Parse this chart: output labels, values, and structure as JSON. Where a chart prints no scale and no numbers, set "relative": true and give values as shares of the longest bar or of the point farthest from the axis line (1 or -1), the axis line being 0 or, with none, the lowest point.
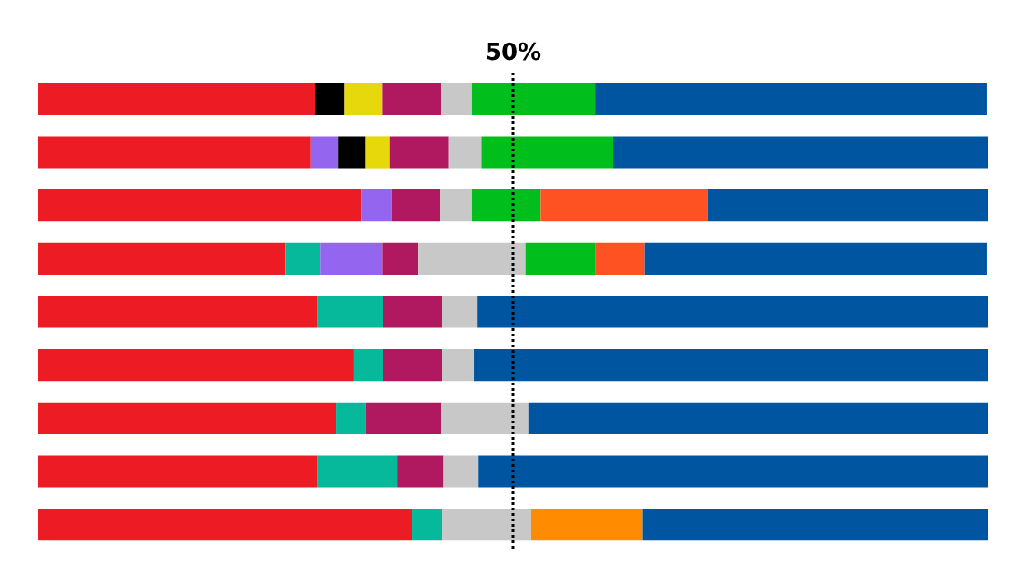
{
  "chart_data": {
    "type": "bar",
    "orientation": "horizontal",
    "stacked": true,
    "relative": true,
    "categories": [
      null,
      null,
      null,
      null,
      null,
      null,
      null,
      null,
      null
    ],
    "series": [
      {
        "color": "#ed1c24",
        "values": [
          0.292,
          0.287,
          0.34,
          0.26,
          0.294,
          0.332,
          0.314,
          0.294,
          0.394
        ]
      },
      {
        "color": "#05b99a",
        "values": [
          null,
          null,
          null,
          0.037,
          0.069,
          0.031,
          0.031,
          0.084,
          0.031
        ]
      },
      {
        "color": "#9466f0",
        "values": [
          null,
          0.029,
          0.032,
          0.065,
          null,
          null,
          null,
          null,
          null
        ]
      },
      {
        "color": "#000000",
        "values": [
          0.03,
          0.029,
          null,
          null,
          null,
          null,
          null,
          null,
          null
        ]
      },
      {
        "color": "#e6d80a",
        "values": [
          0.04,
          0.025,
          null,
          null,
          null,
          null,
          null,
          null,
          null
        ]
      },
      {
        "color": "#b0185f",
        "values": [
          0.062,
          0.062,
          0.051,
          0.038,
          0.062,
          0.062,
          0.079,
          0.049,
          null
        ]
      },
      {
        "color": "#c8c8c8",
        "values": [
          0.033,
          0.035,
          0.034,
          0.113,
          0.037,
          0.034,
          0.092,
          0.036,
          0.094
        ]
      },
      {
        "color": "#00bf1c",
        "values": [
          0.129,
          0.138,
          0.072,
          0.073,
          null,
          null,
          null,
          null,
          null
        ]
      },
      {
        "color": "#ff5222",
        "values": [
          null,
          null,
          0.176,
          0.052,
          null,
          null,
          null,
          null,
          null
        ]
      },
      {
        "color": "#ff8c00",
        "values": [
          null,
          null,
          null,
          null,
          null,
          null,
          null,
          null,
          0.117
        ]
      },
      {
        "color": "#0055a0",
        "values": [
          0.413,
          0.395,
          0.295,
          0.361,
          0.538,
          0.541,
          0.484,
          0.537,
          0.364
        ]
      }
    ],
    "ref_lines": [
      {
        "axis": "x",
        "value": 0.5,
        "label": "50%",
        "color": "#000000",
        "line_style": "dotted"
      }
    ]
  }
}
